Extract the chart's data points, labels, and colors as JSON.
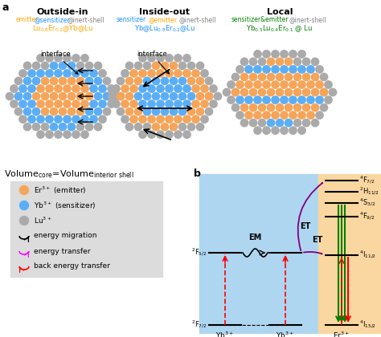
{
  "title_a": "a",
  "title_b": "b",
  "col1_title": "Outside-in",
  "col2_title": "Inside-out",
  "col3_title": "Local",
  "orange_color": "#F5A55A",
  "blue_color": "#5BAEF5",
  "gray_color": "#AAAAAA",
  "bg_blue": "#AED6F1",
  "bg_orange": "#FAD7A0"
}
